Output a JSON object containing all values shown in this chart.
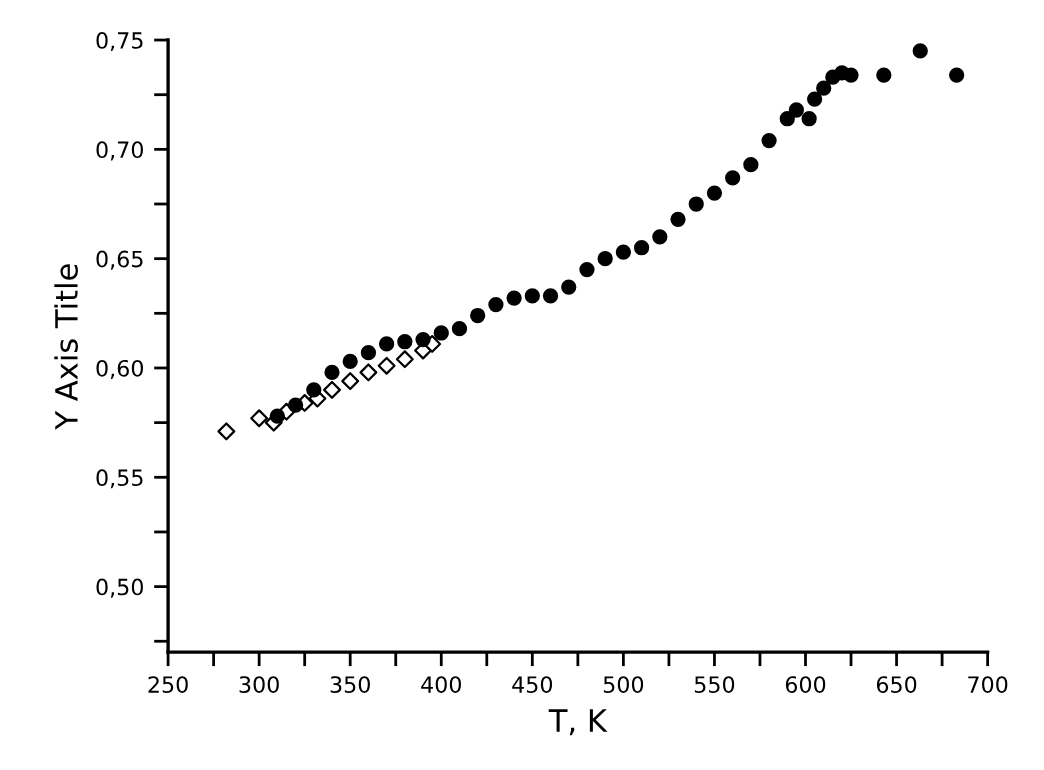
{
  "chart_data": {
    "type": "scatter",
    "xlabel": "T, K",
    "ylabel": "Y Axis Title",
    "xlim": [
      250,
      700
    ],
    "ylim": [
      0.47,
      0.75
    ],
    "xticks": [
      250,
      {
        "value": 275,
        "label": null
      },
      300,
      {
        "value": 325,
        "label": null
      },
      350,
      {
        "value": 375,
        "label": null
      },
      400,
      {
        "value": 425,
        "label": null
      },
      450,
      {
        "value": 475,
        "label": null
      },
      500,
      {
        "value": 525,
        "label": null
      },
      550,
      {
        "value": 575,
        "label": null
      },
      600,
      {
        "value": 625,
        "label": null
      },
      650,
      {
        "value": 675,
        "label": null
      },
      700
    ],
    "yticks": [
      {
        "value": 0.475,
        "label": null
      },
      {
        "value": 0.5,
        "label": "0,50"
      },
      {
        "value": 0.525,
        "label": null
      },
      {
        "value": 0.55,
        "label": "0,55"
      },
      {
        "value": 0.575,
        "label": null
      },
      {
        "value": 0.6,
        "label": "0,60"
      },
      {
        "value": 0.625,
        "label": null
      },
      {
        "value": 0.65,
        "label": "0,65"
      },
      {
        "value": 0.675,
        "label": null
      },
      {
        "value": 0.7,
        "label": "0,70"
      },
      {
        "value": 0.725,
        "label": null
      },
      {
        "value": 0.75,
        "label": "0,75"
      }
    ],
    "series": [
      {
        "color": "#000000",
        "marker": "circle",
        "x": [
          310,
          320,
          330,
          340,
          350,
          360,
          370,
          380,
          390,
          400,
          410,
          420,
          430,
          440,
          450,
          460,
          470,
          480,
          490,
          500,
          510,
          520,
          530,
          540,
          550,
          560,
          570,
          580,
          590,
          595,
          602,
          605,
          610,
          615,
          620,
          625,
          643,
          663,
          683
        ],
        "values": [
          0.578,
          0.583,
          0.59,
          0.598,
          0.603,
          0.607,
          0.611,
          0.612,
          0.613,
          0.616,
          0.618,
          0.624,
          0.629,
          0.632,
          0.633,
          0.633,
          0.637,
          0.645,
          0.65,
          0.653,
          0.655,
          0.66,
          0.668,
          0.675,
          0.68,
          0.687,
          0.693,
          0.704,
          0.714,
          0.718,
          0.714,
          0.723,
          0.728,
          0.733,
          0.735,
          0.734,
          0.734,
          0.745,
          0.734
        ]
      },
      {
        "color": "#000000",
        "marker": "diamond",
        "x": [
          282,
          300,
          308,
          315,
          325,
          332,
          340,
          350,
          360,
          370,
          380,
          390,
          395
        ],
        "values": [
          0.571,
          0.577,
          0.575,
          0.58,
          0.584,
          0.586,
          0.59,
          0.594,
          0.598,
          0.601,
          0.604,
          0.608,
          0.611
        ]
      }
    ]
  }
}
